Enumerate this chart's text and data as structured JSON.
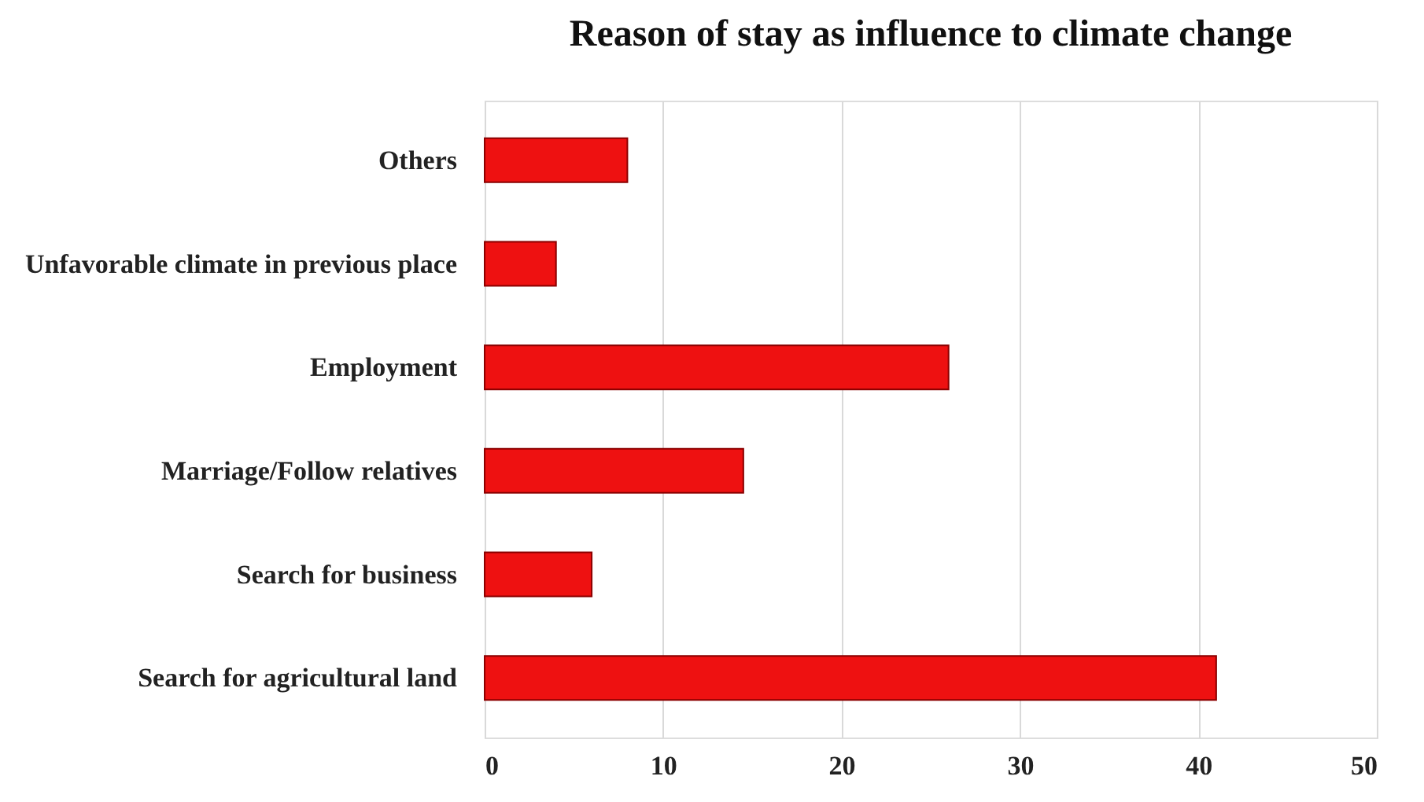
{
  "chart_data": {
    "type": "bar",
    "orientation": "horizontal",
    "title": "Reason of stay as influence to climate change",
    "categories": [
      "Others",
      "Unfavorable climate in previous place",
      "Employment",
      "Marriage/Follow relatives",
      "Search for business",
      "Search for agricultural land"
    ],
    "values": [
      8,
      4,
      26,
      14.5,
      6,
      41
    ],
    "color": "#ee1111",
    "xlim": [
      0,
      50
    ],
    "xticks": [
      0,
      10,
      20,
      30,
      40,
      50
    ],
    "grid": "x"
  }
}
